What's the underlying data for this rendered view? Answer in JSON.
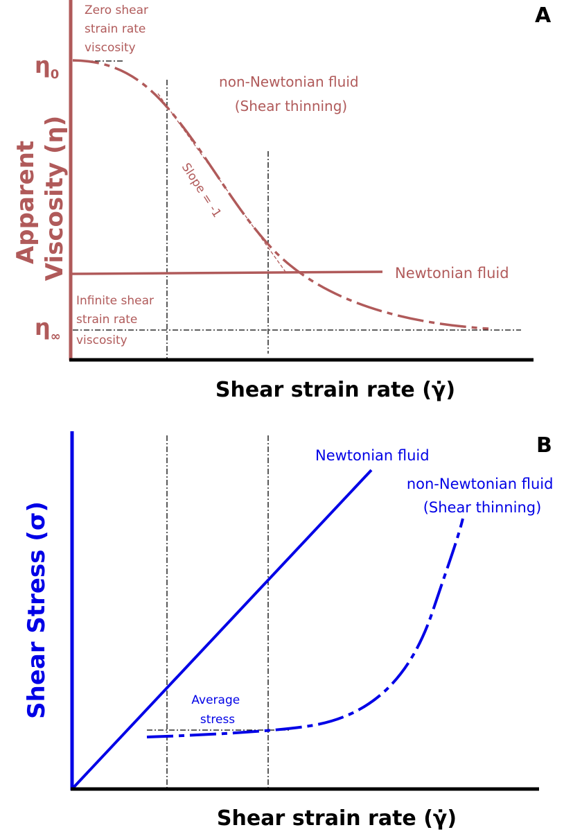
{
  "panel_a": {
    "label": "A",
    "y_axis_title_line1": "Apparent",
    "y_axis_title_line2": "Viscosity (η)",
    "x_axis_title": "Shear strain rate (γ̇)",
    "eta0_symbol": "η",
    "eta0_sub": "0",
    "etainf_symbol": "η",
    "etainf_sub": "∞",
    "zero_shear_label": [
      "Zero shear",
      "strain rate",
      "viscosity"
    ],
    "infinite_shear_label": [
      "Infinite shear",
      "strain rate",
      "viscosity"
    ],
    "non_newtonian_label": [
      "non-Newtonian fluid",
      "(Shear thinning)"
    ],
    "newtonian_label": "Newtonian fluid",
    "slope_label": "Slope = -1"
  },
  "panel_b": {
    "label": "B",
    "y_axis_title": "Shear Stress (σ)",
    "x_axis_title": "Shear strain rate (γ̇)",
    "newtonian_label": "Newtonian fluid",
    "non_newtonian_label": [
      "non-Newtonian fluid",
      "(Shear thinning)"
    ],
    "average_stress_label": [
      "Average",
      "stress"
    ]
  },
  "colors": {
    "panel_a": "#b05a5a",
    "panel_b": "#0000e6",
    "axis": "#000000",
    "guide": "#000000"
  }
}
